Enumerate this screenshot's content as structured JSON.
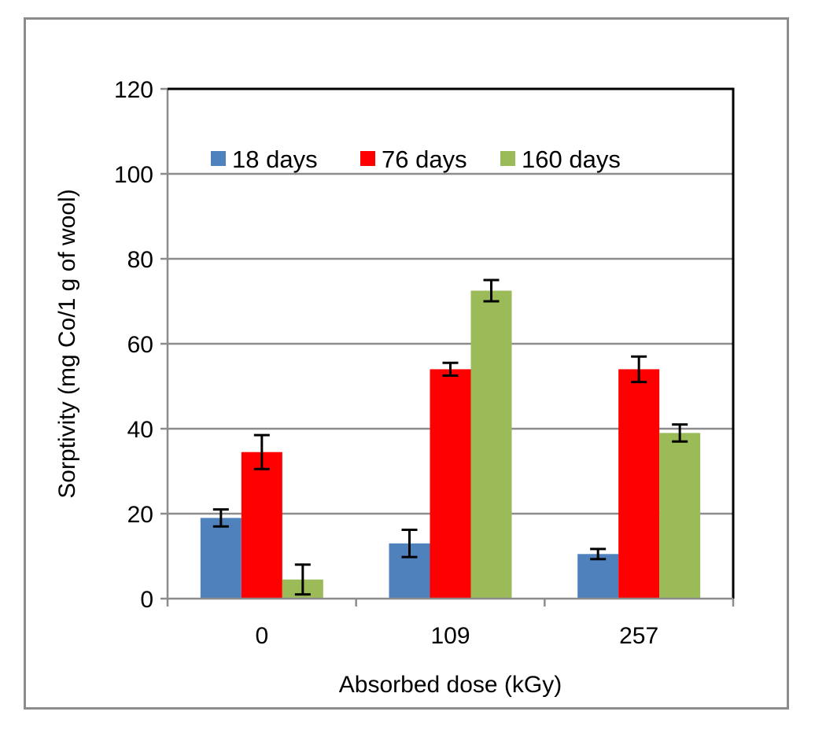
{
  "chart_data": {
    "type": "bar",
    "title": "",
    "xlabel": "Absorbed dose (kGy)",
    "ylabel": "Sorptivity (mg Co/1 g of wool)",
    "ylim": [
      0,
      120
    ],
    "yticks": [
      0,
      20,
      40,
      60,
      80,
      100,
      120
    ],
    "ytick_labels": [
      "0",
      "20",
      "40",
      "60",
      "80",
      "100",
      "120"
    ],
    "categories": [
      "0",
      "109",
      "257"
    ],
    "grid": true,
    "legend_position": "top-left-inside",
    "series": [
      {
        "name": "18 days",
        "color": "#4f81bd",
        "values": [
          19,
          13,
          10.5
        ],
        "errors": [
          2,
          3.2,
          1.2
        ]
      },
      {
        "name": "76 days",
        "color": "#ff0000",
        "values": [
          34.5,
          54,
          54
        ],
        "errors": [
          4,
          1.5,
          3
        ]
      },
      {
        "name": "160 days",
        "color": "#9bbb59",
        "values": [
          4.5,
          72.5,
          39
        ],
        "errors": [
          3.5,
          2.5,
          2
        ]
      }
    ]
  }
}
